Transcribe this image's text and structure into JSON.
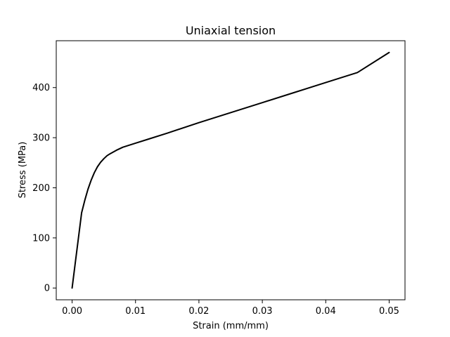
{
  "chart_data": {
    "type": "line",
    "title": "Uniaxial tension",
    "xlabel": "Strain (mm/mm)",
    "ylabel": "Stress (MPa)",
    "xlim": [
      -0.0025,
      0.0525
    ],
    "ylim": [
      -23.5,
      493.5
    ],
    "xticks": [
      0.0,
      0.01,
      0.02,
      0.03,
      0.04,
      0.05
    ],
    "xtick_labels": [
      "0.00",
      "0.01",
      "0.02",
      "0.03",
      "0.04",
      "0.05"
    ],
    "yticks": [
      0,
      100,
      200,
      300,
      400
    ],
    "ytick_labels": [
      "0",
      "100",
      "200",
      "300",
      "400"
    ],
    "grid": false,
    "legend": "none",
    "series": [
      {
        "color": "#000000",
        "x": [
          0.0,
          0.0005,
          0.001,
          0.0015,
          0.002,
          0.0025,
          0.003,
          0.0035,
          0.004,
          0.0045,
          0.005,
          0.0055,
          0.006,
          0.007,
          0.008,
          0.009,
          0.01,
          0.012,
          0.015,
          0.02,
          0.025,
          0.03,
          0.035,
          0.04,
          0.045,
          0.05
        ],
        "y": [
          0,
          50,
          100,
          150,
          175,
          197,
          215,
          230,
          242,
          251,
          258,
          264,
          268,
          275,
          281,
          285,
          289,
          297,
          309,
          330,
          350,
          370,
          390,
          410,
          430,
          470
        ]
      }
    ]
  }
}
